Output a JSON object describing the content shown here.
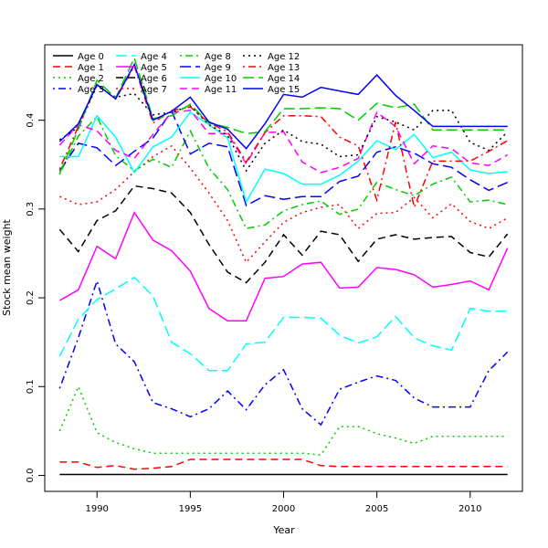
{
  "chart_data": {
    "type": "line",
    "title": "",
    "xlabel": "Year",
    "ylabel": "Stock mean weight",
    "xlim": [
      1987.2,
      2012.8
    ],
    "ylim": [
      -0.018,
      0.485
    ],
    "xticks": [
      1990,
      1995,
      2000,
      2005,
      2010
    ],
    "xtick_labels": [
      "1990",
      "1995",
      "2000",
      "2005",
      "2010"
    ],
    "yticks": [
      0.0,
      0.1,
      0.2,
      0.3,
      0.4
    ],
    "ytick_labels": [
      "0.0",
      "0.1",
      "0.2",
      "0.3",
      "0.4"
    ],
    "grid": false,
    "legend_position": "top-left",
    "x": [
      1988,
      1989,
      1990,
      1991,
      1992,
      1993,
      1994,
      1995,
      1996,
      1997,
      1998,
      1999,
      2000,
      2001,
      2002,
      2003,
      2004,
      2005,
      2006,
      2007,
      2008,
      2009,
      2010,
      2011,
      2012
    ],
    "series": [
      {
        "name": "Age 0",
        "color": "#000000",
        "dash": "solid",
        "values": [
          0.001,
          0.001,
          0.001,
          0.001,
          0.001,
          0.001,
          0.001,
          0.001,
          0.001,
          0.001,
          0.001,
          0.001,
          0.001,
          0.001,
          0.001,
          0.001,
          0.001,
          0.001,
          0.001,
          0.001,
          0.001,
          0.001,
          0.001,
          0.001,
          0.001
        ]
      },
      {
        "name": "Age 1",
        "color": "#ff0000",
        "dash": "dashed",
        "values": [
          0.015,
          0.015,
          0.009,
          0.011,
          0.007,
          0.008,
          0.01,
          0.018,
          0.018,
          0.018,
          0.018,
          0.018,
          0.018,
          0.018,
          0.011,
          0.01,
          0.01,
          0.01,
          0.01,
          0.01,
          0.01,
          0.01,
          0.01,
          0.01,
          0.01
        ]
      },
      {
        "name": "Age 2",
        "color": "#00cd00",
        "dash": "dotted",
        "values": [
          0.05,
          0.1,
          0.048,
          0.037,
          0.03,
          0.025,
          0.025,
          0.025,
          0.025,
          0.025,
          0.025,
          0.025,
          0.025,
          0.025,
          0.023,
          0.055,
          0.055,
          0.047,
          0.042,
          0.036,
          0.044,
          0.044,
          0.044,
          0.044,
          0.044
        ]
      },
      {
        "name": "Age 3",
        "color": "#0000ff",
        "dash": "dotdash",
        "values": [
          0.098,
          0.155,
          0.219,
          0.148,
          0.128,
          0.082,
          0.075,
          0.066,
          0.075,
          0.095,
          0.074,
          0.102,
          0.119,
          0.075,
          0.057,
          0.097,
          0.105,
          0.112,
          0.107,
          0.087,
          0.077,
          0.077,
          0.077,
          0.118,
          0.139
        ]
      },
      {
        "name": "Age 4",
        "color": "#00ffff",
        "dash": "longdash",
        "values": [
          0.134,
          0.176,
          0.198,
          0.21,
          0.223,
          0.202,
          0.15,
          0.137,
          0.118,
          0.118,
          0.148,
          0.15,
          0.178,
          0.178,
          0.177,
          0.158,
          0.149,
          0.156,
          0.179,
          0.155,
          0.146,
          0.141,
          0.188,
          0.185,
          0.185
        ]
      },
      {
        "name": "Age 5",
        "color": "#ff00ff",
        "dash": "solid",
        "values": [
          0.197,
          0.209,
          0.258,
          0.244,
          0.296,
          0.265,
          0.253,
          0.23,
          0.188,
          0.174,
          0.174,
          0.222,
          0.224,
          0.238,
          0.24,
          0.211,
          0.212,
          0.234,
          0.232,
          0.226,
          0.212,
          0.215,
          0.219,
          0.209,
          0.256
        ]
      },
      {
        "name": "Age 6",
        "color": "#000000",
        "dash": "dashed",
        "values": [
          0.277,
          0.252,
          0.287,
          0.298,
          0.326,
          0.323,
          0.318,
          0.296,
          0.26,
          0.229,
          0.217,
          0.24,
          0.271,
          0.248,
          0.275,
          0.271,
          0.241,
          0.266,
          0.271,
          0.266,
          0.268,
          0.269,
          0.251,
          0.246,
          0.272
        ]
      },
      {
        "name": "Age 7",
        "color": "#ff0000",
        "dash": "dotted",
        "values": [
          0.314,
          0.305,
          0.308,
          0.322,
          0.342,
          0.359,
          0.371,
          0.346,
          0.318,
          0.287,
          0.24,
          0.263,
          0.285,
          0.296,
          0.302,
          0.305,
          0.278,
          0.295,
          0.296,
          0.313,
          0.29,
          0.306,
          0.286,
          0.278,
          0.29
        ]
      },
      {
        "name": "Age 8",
        "color": "#00cd00",
        "dash": "dotdash",
        "values": [
          0.339,
          0.382,
          0.404,
          0.36,
          0.343,
          0.356,
          0.347,
          0.388,
          0.346,
          0.322,
          0.278,
          0.282,
          0.298,
          0.305,
          0.309,
          0.294,
          0.3,
          0.33,
          0.322,
          0.315,
          0.328,
          0.336,
          0.308,
          0.31,
          0.305
        ]
      },
      {
        "name": "Age 9",
        "color": "#0000ff",
        "dash": "longdash",
        "values": [
          0.343,
          0.374,
          0.369,
          0.349,
          0.365,
          0.38,
          0.41,
          0.362,
          0.374,
          0.37,
          0.304,
          0.315,
          0.311,
          0.314,
          0.314,
          0.331,
          0.337,
          0.364,
          0.37,
          0.363,
          0.351,
          0.347,
          0.333,
          0.321,
          0.33
        ]
      },
      {
        "name": "Age 10",
        "color": "#00ffff",
        "dash": "solid",
        "values": [
          0.359,
          0.359,
          0.405,
          0.381,
          0.341,
          0.37,
          0.381,
          0.409,
          0.395,
          0.38,
          0.308,
          0.345,
          0.34,
          0.328,
          0.328,
          0.338,
          0.354,
          0.377,
          0.367,
          0.384,
          0.358,
          0.364,
          0.344,
          0.34,
          0.342
        ]
      },
      {
        "name": "Age 11",
        "color": "#ff00ff",
        "dash": "dashed",
        "values": [
          0.372,
          0.395,
          0.388,
          0.366,
          0.357,
          0.384,
          0.409,
          0.411,
          0.385,
          0.385,
          0.351,
          0.386,
          0.387,
          0.353,
          0.341,
          0.347,
          0.357,
          0.409,
          0.393,
          0.351,
          0.371,
          0.368,
          0.352,
          0.349,
          0.361
        ]
      },
      {
        "name": "Age 12",
        "color": "#000000",
        "dash": "dotted",
        "values": [
          0.378,
          0.392,
          0.439,
          0.426,
          0.43,
          0.406,
          0.409,
          0.416,
          0.395,
          0.383,
          0.343,
          0.374,
          0.389,
          0.376,
          0.373,
          0.359,
          0.361,
          0.404,
          0.398,
          0.389,
          0.411,
          0.411,
          0.375,
          0.366,
          0.387
        ]
      },
      {
        "name": "Age 13",
        "color": "#ff0000",
        "dash": "dotdash",
        "values": [
          0.345,
          0.393,
          0.44,
          0.424,
          0.461,
          0.397,
          0.411,
          0.415,
          0.397,
          0.387,
          0.353,
          0.386,
          0.405,
          0.405,
          0.404,
          0.381,
          0.371,
          0.31,
          0.398,
          0.302,
          0.354,
          0.354,
          0.354,
          0.365,
          0.377
        ]
      },
      {
        "name": "Age 14",
        "color": "#00cd00",
        "dash": "longdash",
        "values": [
          0.34,
          0.39,
          0.445,
          0.425,
          0.47,
          0.402,
          0.405,
          0.418,
          0.397,
          0.392,
          0.385,
          0.387,
          0.413,
          0.413,
          0.414,
          0.413,
          0.4,
          0.419,
          0.414,
          0.418,
          0.389,
          0.389,
          0.389,
          0.389,
          0.389
        ]
      },
      {
        "name": "Age 15",
        "color": "#0000ff",
        "dash": "solid",
        "values": [
          0.376,
          0.396,
          0.44,
          0.424,
          0.463,
          0.4,
          0.41,
          0.426,
          0.398,
          0.39,
          0.368,
          0.396,
          0.429,
          0.426,
          0.437,
          0.433,
          0.429,
          0.451,
          0.428,
          0.411,
          0.393,
          0.393,
          0.393,
          0.393,
          0.393
        ]
      }
    ]
  }
}
